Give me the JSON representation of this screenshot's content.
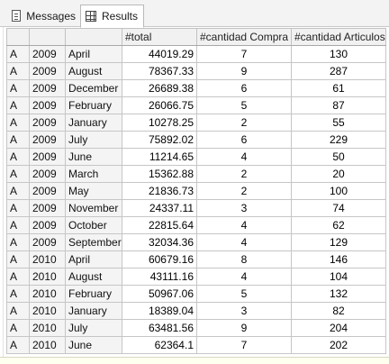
{
  "tabs": {
    "messages": {
      "label": "Messages",
      "icon": "messages-icon"
    },
    "results": {
      "label": "Results",
      "icon": "results-grid-icon",
      "active": true
    }
  },
  "grid": {
    "headers": [
      "",
      "",
      "",
      "#total",
      "#cantidad Compra",
      "#cantidad Articulos"
    ],
    "rows": [
      [
        "A",
        "2009",
        "April",
        "44019.29",
        "7",
        "130"
      ],
      [
        "A",
        "2009",
        "August",
        "78367.33",
        "9",
        "287"
      ],
      [
        "A",
        "2009",
        "December",
        "26689.38",
        "6",
        "61"
      ],
      [
        "A",
        "2009",
        "February",
        "26066.75",
        "5",
        "87"
      ],
      [
        "A",
        "2009",
        "January",
        "10278.25",
        "2",
        "55"
      ],
      [
        "A",
        "2009",
        "July",
        "75892.02",
        "6",
        "229"
      ],
      [
        "A",
        "2009",
        "June",
        "11214.65",
        "4",
        "50"
      ],
      [
        "A",
        "2009",
        "March",
        "15362.88",
        "2",
        "20"
      ],
      [
        "A",
        "2009",
        "May",
        "21836.73",
        "2",
        "100"
      ],
      [
        "A",
        "2009",
        "November",
        "24337.11",
        "3",
        "74"
      ],
      [
        "A",
        "2009",
        "October",
        "22815.64",
        "4",
        "62"
      ],
      [
        "A",
        "2009",
        "September",
        "32034.36",
        "4",
        "129"
      ],
      [
        "A",
        "2010",
        "April",
        "60679.16",
        "8",
        "146"
      ],
      [
        "A",
        "2010",
        "August",
        "43111.16",
        "4",
        "104"
      ],
      [
        "A",
        "2010",
        "February",
        "50967.06",
        "5",
        "132"
      ],
      [
        "A",
        "2010",
        "January",
        "18389.04",
        "3",
        "82"
      ],
      [
        "A",
        "2010",
        "July",
        "63481.56",
        "9",
        "204"
      ],
      [
        "A",
        "2010",
        "June",
        "62364.1",
        "7",
        "202"
      ]
    ]
  }
}
